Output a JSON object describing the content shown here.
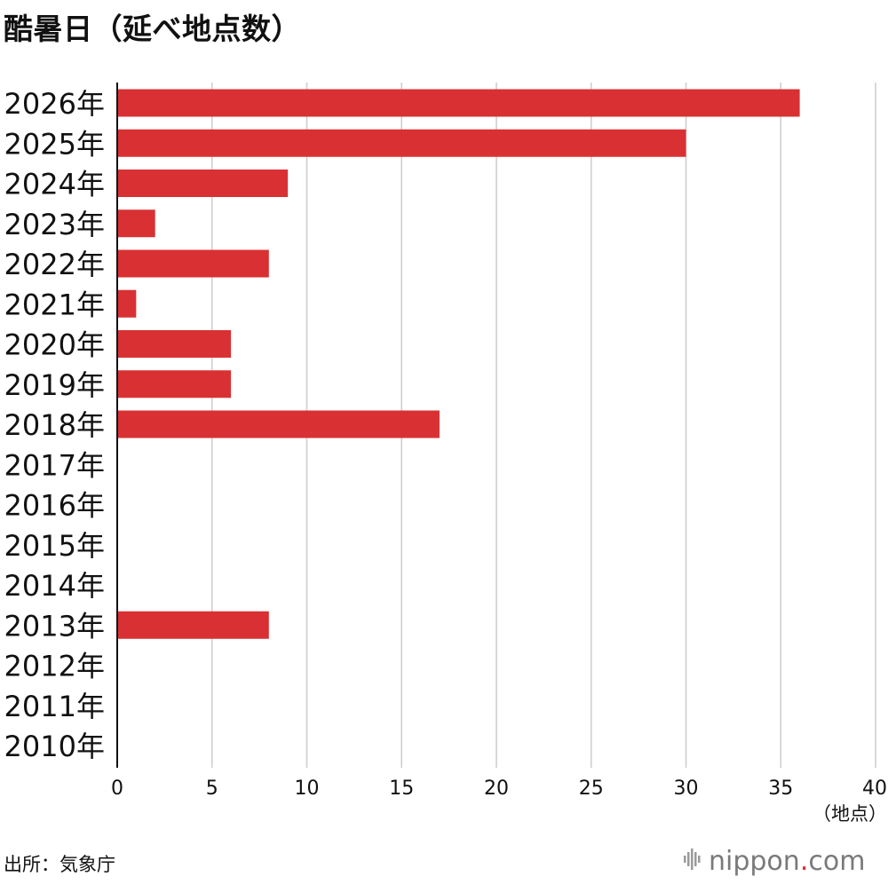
{
  "title": "酷暑日（延べ地点数）",
  "source": "出所：気象庁",
  "logo": {
    "name": "nippon",
    "dot": ".",
    "suffix": "com",
    "icon": "sound-wave-icon"
  },
  "colors": {
    "bar": "#d93133",
    "grid": "#cfcfcf",
    "axis": "#111111",
    "logo_gray": "#7a7a7a",
    "logo_red": "#d9262c"
  },
  "chart_data": {
    "type": "bar",
    "orientation": "horizontal",
    "categories": [
      "2026年",
      "2025年",
      "2024年",
      "2023年",
      "2022年",
      "2021年",
      "2020年",
      "2019年",
      "2018年",
      "2017年",
      "2016年",
      "2015年",
      "2014年",
      "2013年",
      "2012年",
      "2011年",
      "2010年"
    ],
    "values": [
      36,
      30,
      9,
      2,
      8,
      1,
      6,
      6,
      17,
      0,
      0,
      0,
      0,
      8,
      0,
      0,
      0
    ],
    "xlim": [
      0,
      40
    ],
    "xticks": [
      0,
      5,
      10,
      15,
      20,
      25,
      30,
      35,
      40
    ],
    "unit_label": "（地点）",
    "grid": "vertical"
  }
}
